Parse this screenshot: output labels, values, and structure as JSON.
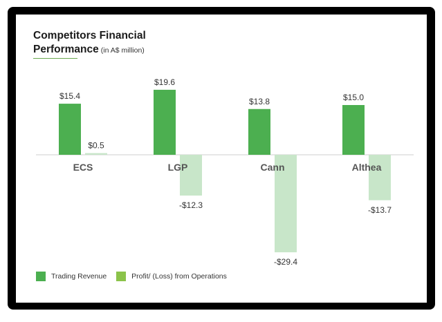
{
  "header": {
    "title_line1": "Competitors Financial",
    "title_line2": "Performance",
    "subtitle": "(in A$ million)"
  },
  "colors": {
    "revenue": "#4caf50",
    "profit": "#c8e6c9",
    "profit_legend": "#8bc34a",
    "axis": "#cfcfcf"
  },
  "legend": {
    "revenue_label": "Trading Revenue",
    "profit_label": "Profit/ (Loss) from Operations"
  },
  "chart_data": {
    "type": "bar",
    "title": "Competitors Financial Performance",
    "subtitle": "(in A$ million)",
    "categories": [
      "ECS",
      "LGP",
      "Cann",
      "Althea"
    ],
    "series": [
      {
        "name": "Trading Revenue",
        "values": [
          15.4,
          19.6,
          13.8,
          15.0
        ],
        "labels": [
          "$15.4",
          "$19.6",
          "$13.8",
          "$15.0"
        ]
      },
      {
        "name": "Profit/ (Loss) from Operations",
        "values": [
          0.5,
          -12.3,
          -29.4,
          -13.7
        ],
        "labels": [
          "$0.5",
          "-$12.3",
          "-$29.4",
          "-$13.7"
        ]
      }
    ],
    "xlabel": "",
    "ylabel": "",
    "legend_position": "bottom-left",
    "grid": false
  }
}
